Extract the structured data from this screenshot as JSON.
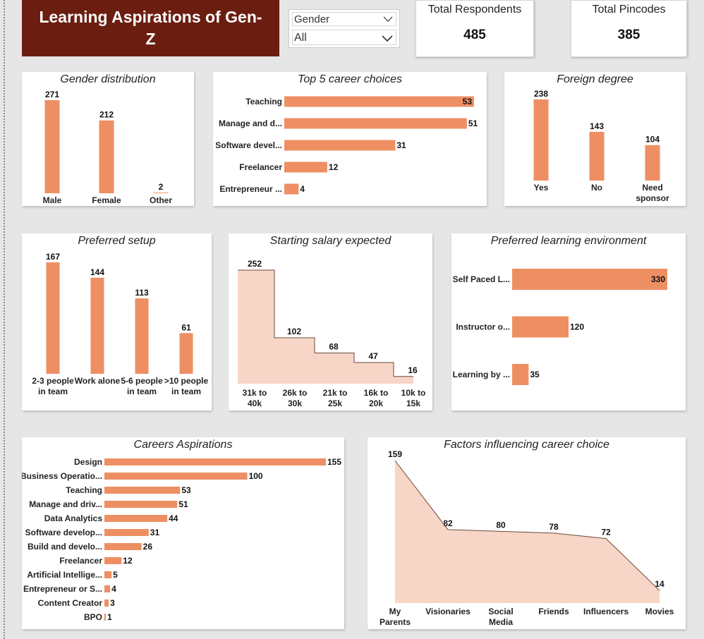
{
  "header": {
    "title": "Learning Aspirations of Gen-Z"
  },
  "slicer": {
    "label": "Gender",
    "value": "All"
  },
  "cards": [
    {
      "title": "Total Respondents",
      "value": "485"
    },
    {
      "title": "Total Pincodes",
      "value": "385"
    }
  ],
  "colors": {
    "bar": "#ee8f63",
    "area": "#f7d5c7",
    "header_bg": "#6b1e10"
  },
  "chart_data": [
    {
      "id": "gender",
      "type": "bar",
      "title": "Gender distribution",
      "categories": [
        "Male",
        "Female",
        "Other"
      ],
      "values": [
        271,
        212,
        2
      ]
    },
    {
      "id": "top5",
      "type": "bar",
      "orientation": "horizontal",
      "title": "Top 5 career choices",
      "categories": [
        "Teaching",
        "Manage and d...",
        "Software devel...",
        "Freelancer",
        "Entrepreneur ..."
      ],
      "values": [
        53,
        51,
        31,
        12,
        4
      ]
    },
    {
      "id": "foreign",
      "type": "bar",
      "title": "Foreign degree",
      "categories": [
        "Yes",
        "No",
        "Need sponsor"
      ],
      "values": [
        238,
        143,
        104
      ]
    },
    {
      "id": "setup",
      "type": "bar",
      "title": "Preferred setup",
      "categories": [
        "2-3 people in team",
        "Work alone",
        "5-6 people in team",
        ">10 people in team"
      ],
      "values": [
        167,
        144,
        113,
        61
      ]
    },
    {
      "id": "salary",
      "type": "area",
      "step": true,
      "title": "Starting salary expected",
      "categories": [
        "31k to 40k",
        "26k to 30k",
        "21k to 25k",
        "16k to 20k",
        "10k to 15k"
      ],
      "values": [
        252,
        102,
        68,
        47,
        16
      ]
    },
    {
      "id": "learning",
      "type": "bar",
      "orientation": "horizontal",
      "title": "Preferred learning environment",
      "categories": [
        "Self Paced L...",
        "Instructor o...",
        "Learning by ..."
      ],
      "values": [
        330,
        120,
        35
      ]
    },
    {
      "id": "aspirations",
      "type": "bar",
      "orientation": "horizontal",
      "title": "Careers Aspirations",
      "categories": [
        "Design",
        "Business Operatio...",
        "Teaching",
        "Manage and driv...",
        "Data Analytics",
        "Software develop...",
        "Build and develo...",
        "Freelancer",
        "Artificial Intellige...",
        "Entrepreneur or S...",
        "Content Creator",
        "BPO"
      ],
      "values": [
        155,
        100,
        53,
        51,
        44,
        31,
        26,
        12,
        5,
        4,
        3,
        1
      ]
    },
    {
      "id": "factors",
      "type": "area",
      "title": "Factors influencing career choice",
      "categories": [
        "My Parents",
        "Visionaries",
        "Social Media",
        "Friends",
        "Influencers",
        "Movies"
      ],
      "values": [
        159,
        82,
        80,
        78,
        72,
        14
      ]
    }
  ]
}
